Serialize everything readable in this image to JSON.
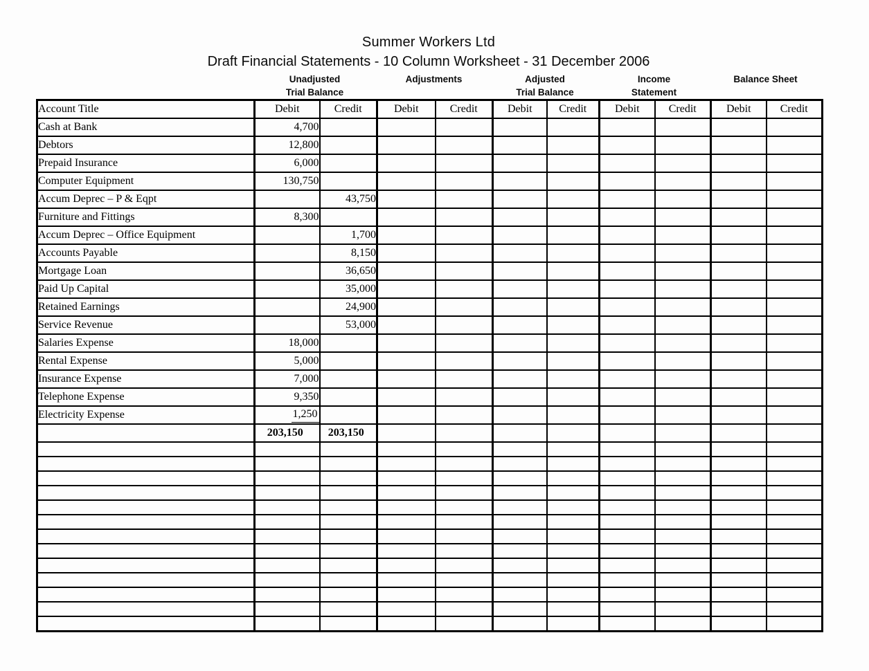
{
  "document": {
    "title": "Summer Workers Ltd",
    "subtitle": "Draft Financial Statements - 10 Column Worksheet - 31 December 2006"
  },
  "colors": {
    "text": "#000000",
    "background": "#ffffff",
    "grid_line": "#000000"
  },
  "worksheet": {
    "column_groups": [
      {
        "line1": "Unadjusted",
        "line2": "Trial Balance"
      },
      {
        "line1": "Adjustments",
        "line2": ""
      },
      {
        "line1": "Adjusted",
        "line2": "Trial Balance"
      },
      {
        "line1": "Income",
        "line2": "Statement"
      },
      {
        "line1": "Balance Sheet",
        "line2": ""
      }
    ],
    "header": {
      "account_title": "Account Title",
      "debit": "Debit",
      "credit": "Credit"
    },
    "rows": [
      {
        "account": "Cash at Bank",
        "utb_debit": "4,700",
        "utb_credit": ""
      },
      {
        "account": "Debtors",
        "utb_debit": "12,800",
        "utb_credit": ""
      },
      {
        "account": "Prepaid Insurance",
        "utb_debit": "6,000",
        "utb_credit": ""
      },
      {
        "account": "Computer Equipment",
        "utb_debit": "130,750",
        "utb_credit": ""
      },
      {
        "account": "Accum Deprec – P & Eqpt",
        "utb_debit": "",
        "utb_credit": "43,750"
      },
      {
        "account": "Furniture and Fittings",
        "utb_debit": "8,300",
        "utb_credit": ""
      },
      {
        "account": "Accum Deprec – Office Equipment",
        "utb_debit": "",
        "utb_credit": "1,700"
      },
      {
        "account": "Accounts Payable",
        "utb_debit": "",
        "utb_credit": "8,150"
      },
      {
        "account": "Mortgage Loan",
        "utb_debit": "",
        "utb_credit": "36,650"
      },
      {
        "account": "Paid Up Capital",
        "utb_debit": "",
        "utb_credit": "35,000"
      },
      {
        "account": "Retained Earnings",
        "utb_debit": "",
        "utb_credit": "24,900"
      },
      {
        "account": "Service Revenue",
        "utb_debit": "",
        "utb_credit": "53,000"
      },
      {
        "account": "Salaries Expense",
        "utb_debit": "18,000",
        "utb_credit": ""
      },
      {
        "account": "Rental Expense",
        "utb_debit": "5,000",
        "utb_credit": ""
      },
      {
        "account": "Insurance Expense",
        "utb_debit": "7,000",
        "utb_credit": ""
      },
      {
        "account": "Telephone Expense",
        "utb_debit": "9,350",
        "utb_credit": ""
      },
      {
        "account": "Electricity Expense",
        "utb_debit": "1,250",
        "utb_credit": "",
        "underline": true
      }
    ],
    "totals": {
      "utb_debit": "203,150",
      "utb_credit": "203,150"
    },
    "empty_row_count": 13
  }
}
